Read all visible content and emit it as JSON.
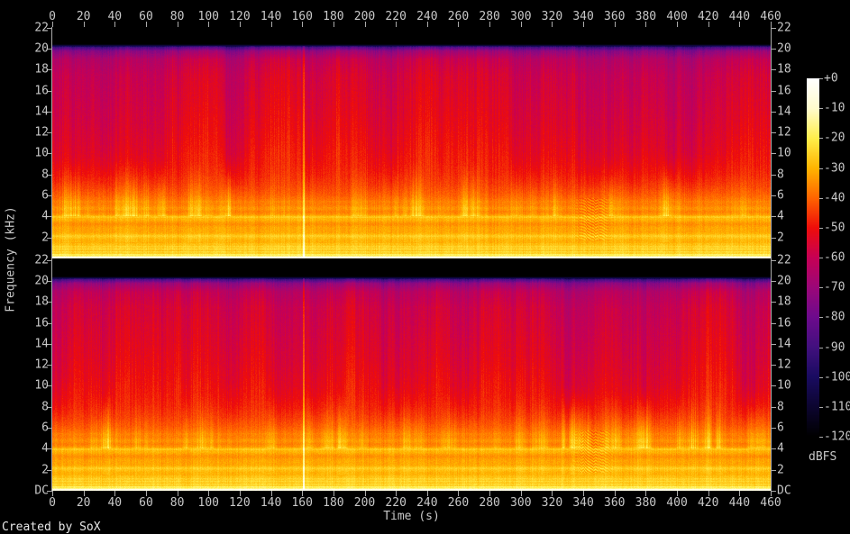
{
  "app": {
    "credit": "Created by SoX"
  },
  "chart_data": {
    "type": "heatmap",
    "subtype": "audio-spectrogram",
    "title": "",
    "xlabel": "Time (s)",
    "ylabel": "Frequency (kHz)",
    "colorbar_label": "dBFS",
    "channel_count": 2,
    "channels": [
      "channel-1-top",
      "channel-2-bottom"
    ],
    "x_axis": {
      "min": 0,
      "max": 460,
      "tick_step": 20,
      "tick_values": [
        0,
        20,
        40,
        60,
        80,
        100,
        120,
        140,
        160,
        180,
        200,
        220,
        240,
        260,
        280,
        300,
        320,
        340,
        360,
        380,
        400,
        420,
        440,
        460
      ]
    },
    "y_axis": {
      "max_khz": 22.05,
      "tick_labels": [
        "22",
        "20",
        "18",
        "16",
        "14",
        "12",
        "10",
        "8",
        "6",
        "4",
        "2",
        "DC"
      ],
      "tick_values_khz": [
        22,
        20,
        18,
        16,
        14,
        12,
        10,
        8,
        6,
        4,
        2,
        0
      ]
    },
    "colorbar": {
      "min_db": -120,
      "max_db": 0,
      "tick_labels": [
        "+0",
        "-10",
        "-20",
        "-30",
        "-40",
        "-50",
        "-60",
        "-70",
        "-80",
        "-90",
        "-100",
        "-110",
        "-120"
      ],
      "tick_values_db": [
        0,
        -10,
        -20,
        -30,
        -40,
        -50,
        -60,
        -70,
        -80,
        -90,
        -100,
        -110,
        -120
      ],
      "palette_stops": [
        {
          "db": -120,
          "color": "#000000"
        },
        {
          "db": -110,
          "color": "#0c0530"
        },
        {
          "db": -100,
          "color": "#190b60"
        },
        {
          "db": -90,
          "color": "#42107e"
        },
        {
          "db": -80,
          "color": "#6d0a8c"
        },
        {
          "db": -70,
          "color": "#9b0778"
        },
        {
          "db": -60,
          "color": "#c60054"
        },
        {
          "db": -50,
          "color": "#ee0d0a"
        },
        {
          "db": -40,
          "color": "#ff6400"
        },
        {
          "db": -30,
          "color": "#ffb400"
        },
        {
          "db": -20,
          "color": "#ffee4a"
        },
        {
          "db": -10,
          "color": "#fffbcc"
        },
        {
          "db": 0,
          "color": "#ffffff"
        }
      ]
    },
    "level_profile_db": [
      [
        0.0,
        -5
      ],
      [
        0.1,
        -8
      ],
      [
        0.25,
        -20
      ],
      [
        0.5,
        -24
      ],
      [
        0.9,
        -25
      ],
      [
        1.3,
        -28
      ],
      [
        1.7,
        -30
      ],
      [
        1.95,
        -29
      ],
      [
        2.1,
        -26
      ],
      [
        2.35,
        -30
      ],
      [
        2.8,
        -33
      ],
      [
        3.2,
        -34
      ],
      [
        3.6,
        -31
      ],
      [
        3.78,
        -31
      ],
      [
        3.92,
        -26
      ],
      [
        4.1,
        -32
      ],
      [
        4.45,
        -37
      ],
      [
        4.8,
        -35
      ],
      [
        5.3,
        -37
      ],
      [
        6.0,
        -41
      ],
      [
        7.0,
        -45
      ],
      [
        8.0,
        -48
      ],
      [
        9.0,
        -50
      ],
      [
        10.5,
        -52
      ],
      [
        12.5,
        -54
      ],
      [
        15.0,
        -56
      ],
      [
        17.5,
        -58
      ],
      [
        19.0,
        -62
      ],
      [
        19.8,
        -72
      ],
      [
        20.15,
        -88
      ],
      [
        20.35,
        -110
      ],
      [
        20.45,
        -120
      ],
      [
        22.05,
        -120
      ]
    ],
    "events": [
      {
        "type": "broadband_transient",
        "time_s": 161,
        "peak_boost_db": 24,
        "desc": "thin bright orange column spanning both channels up to ~20.3 kHz"
      },
      {
        "type": "interference_texture",
        "time_range_s": [
          332,
          361
        ],
        "freq_range_khz": [
          1.7,
          5.7
        ],
        "modulation_db": 4.5,
        "desc": "wavy ripple patch in low-mid band"
      },
      {
        "type": "intermittent_bursts",
        "freq_range_khz": [
          4,
          10
        ],
        "desc": "orange energy flares reaching ~9 kHz during loud passages"
      },
      {
        "type": "bandlimit",
        "cutoff_khz": 20.35,
        "desc": "black band above ~20.3 kHz (no content up to 22.05 kHz axis top)"
      }
    ]
  }
}
